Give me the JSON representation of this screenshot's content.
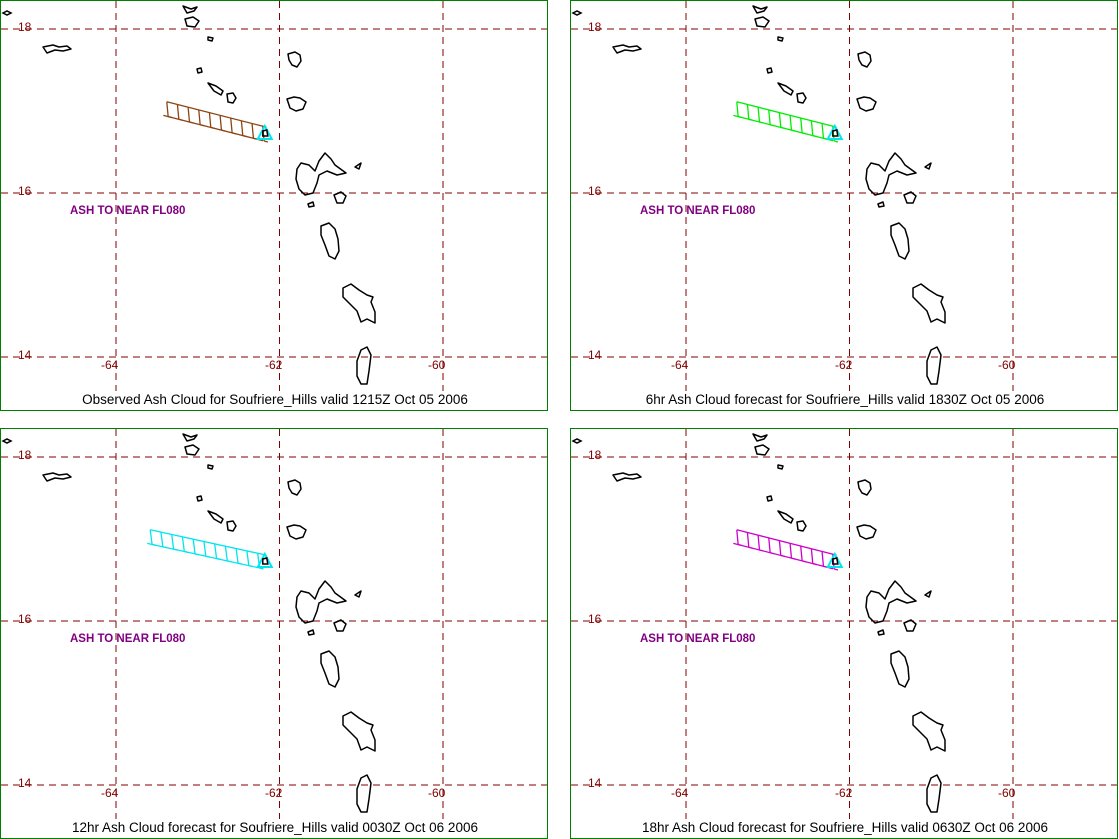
{
  "panels": [
    {
      "caption": "Observed Ash Cloud for Soufriere_Hills valid 1215Z Oct 05 2006",
      "label": "ASH TO NEAR FL080",
      "plume_color": "#8b4513",
      "plume_lon_start": -63.4
    },
    {
      "caption": "6hr Ash Cloud forecast for Soufriere_Hills valid 1830Z Oct 05 2006",
      "label": "ASH TO NEAR FL080",
      "plume_color": "#00ee00",
      "plume_lon_start": -63.4
    },
    {
      "caption": "12hr Ash Cloud forecast for Soufriere_Hills valid 0030Z Oct 06 2006",
      "label": "ASH TO NEAR FL080",
      "plume_color": "#00e5ee",
      "plume_lon_start": -63.6
    },
    {
      "caption": "18hr Ash Cloud forecast for Soufriere_Hills valid 0630Z Oct 06 2006",
      "label": "ASH TO NEAR FL080",
      "plume_color": "#cc00cc",
      "plume_lon_start": -63.4
    }
  ],
  "lat_labels": [
    "18",
    "16",
    "14"
  ],
  "lon_labels": [
    "-64",
    "-62",
    "-60"
  ],
  "colors": {
    "grid": "#800000",
    "border": "#008000",
    "coast": "#000000",
    "volcano_marker": "#00e5ee",
    "label": "#800080"
  }
}
